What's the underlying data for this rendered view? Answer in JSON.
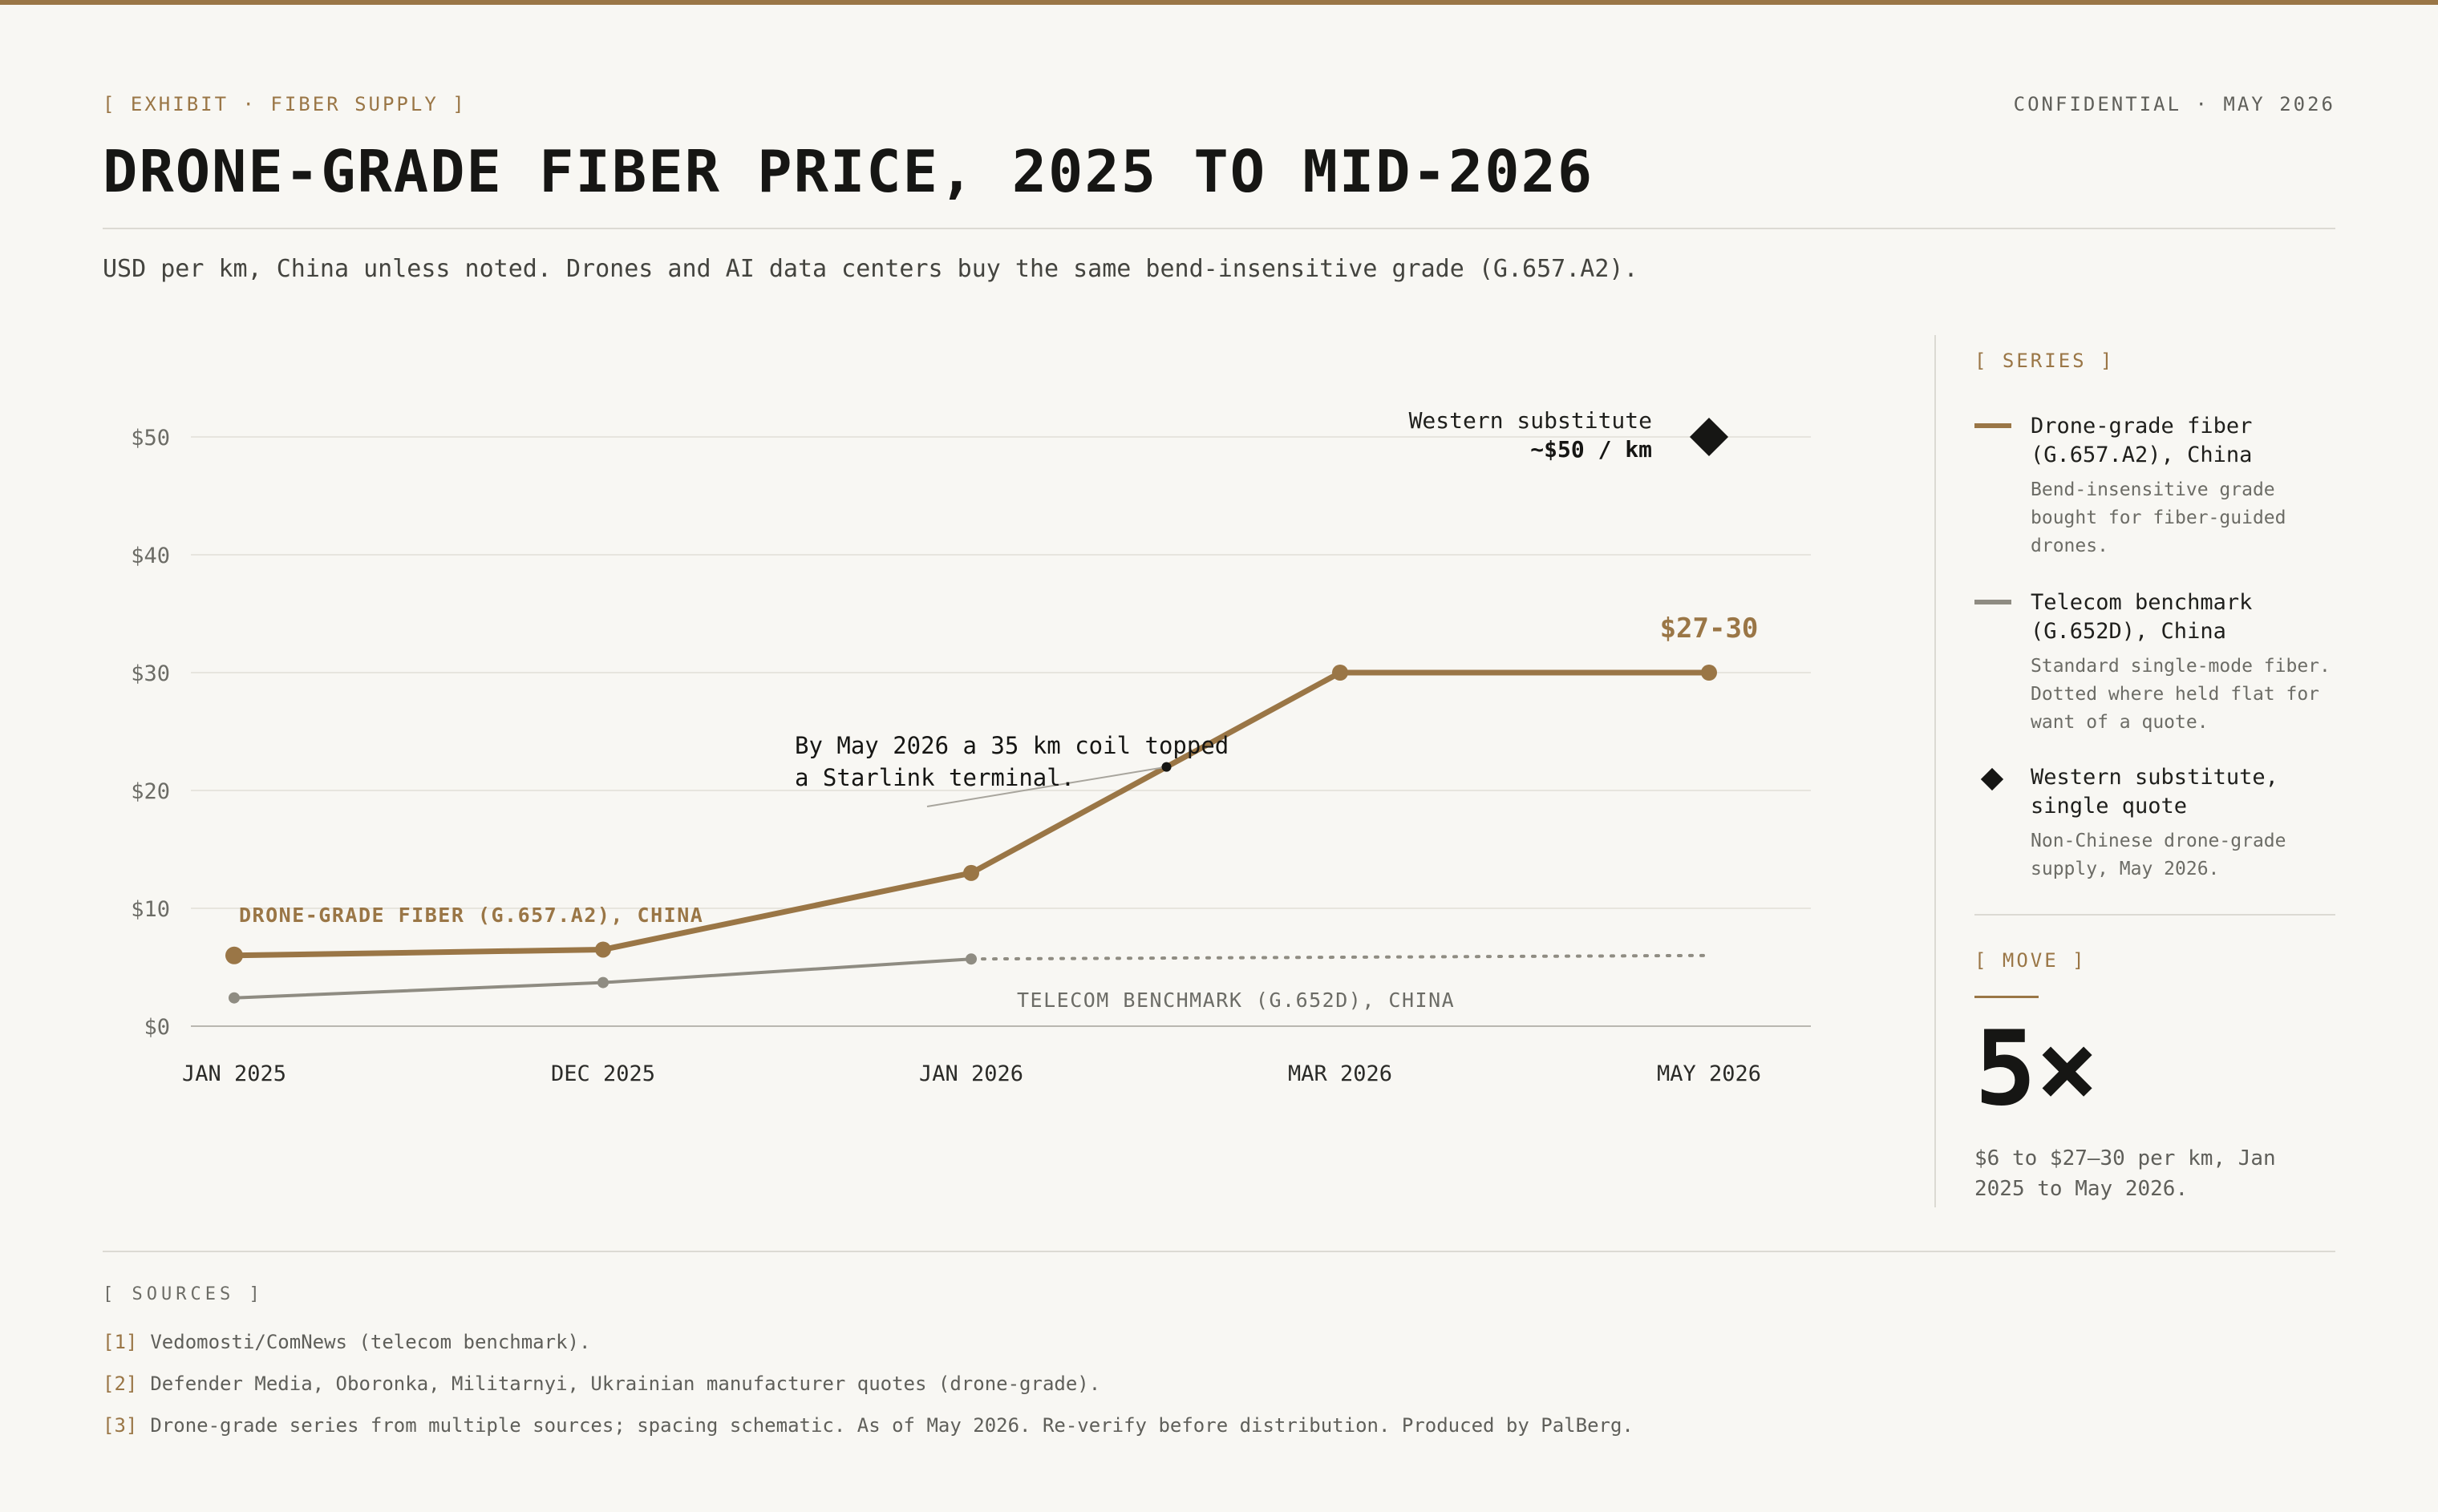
{
  "header": {
    "kicker": "[ EXHIBIT · FIBER SUPPLY ]",
    "confidential": "CONFIDENTIAL · MAY 2026",
    "title": "DRONE-GRADE FIBER PRICE, 2025 TO MID-2026",
    "subtitle": "USD per km, China unless noted. Drones and AI data centers buy the same bend-insensitive grade (G.657.A2)."
  },
  "colors": {
    "accent": "#9a7646",
    "telecom": "#8f8c82",
    "dark": "#161614",
    "background": "#f8f7f3"
  },
  "chart_data": {
    "type": "line",
    "categories": [
      "JAN 2025",
      "DEC 2025",
      "JAN 2026",
      "MAR 2026",
      "MAY 2026"
    ],
    "y_tick_labels": [
      "$0",
      "$10",
      "$20",
      "$30",
      "$40",
      "$50"
    ],
    "ylim": [
      0,
      50
    ],
    "grid": true,
    "series": [
      {
        "name": "DRONE-GRADE FIBER (G.657.A2), CHINA",
        "color": "#9a7646",
        "values": [
          6,
          6.5,
          13,
          30,
          30
        ]
      },
      {
        "name": "TELECOM BENCHMARK (G.652D), CHINA",
        "color": "#8f8c82",
        "values": [
          2.4,
          3.7,
          5.7,
          null,
          6
        ],
        "dotted_from": "JAN 2026"
      },
      {
        "name": "Western substitute",
        "marker": "diamond",
        "x": "MAY 2026",
        "value": 50
      }
    ],
    "annotations": {
      "end_value": "$27-30",
      "western_line1": "Western substitute",
      "western_line2": "~$50 / km",
      "starlink_line1": "By May 2026 a 35 km coil topped",
      "starlink_line2": "a Starlink terminal.",
      "starlink_point_value": 22
    }
  },
  "sidebar": {
    "series_head": "[ SERIES ]",
    "legend": [
      {
        "name": "Drone-grade fiber (G.657.A2), China",
        "desc": "Bend-insensitive grade bought for fiber-guided drones."
      },
      {
        "name": "Telecom benchmark (G.652D), China",
        "desc": "Standard single-mode fiber. Dotted where held flat for want of a quote."
      },
      {
        "name": "Western substitute, single quote",
        "desc": "Non-Chinese drone-grade supply, May 2026."
      }
    ],
    "move_head": "[ MOVE ]",
    "move_value": "5×",
    "move_desc": "$6 to $27–30 per km, Jan 2025 to May 2026."
  },
  "sources": {
    "head": "[ SOURCES ]",
    "items": [
      {
        "num": "[1]",
        "text": "Vedomosti/ComNews (telecom benchmark)."
      },
      {
        "num": "[2]",
        "text": "Defender Media, Oboronka, Militarnyi, Ukrainian manufacturer quotes (drone-grade)."
      },
      {
        "num": "[3]",
        "text": "Drone-grade series from multiple sources; spacing schematic. As of May 2026. Re-verify before distribution. Produced by PalBerg."
      }
    ]
  }
}
